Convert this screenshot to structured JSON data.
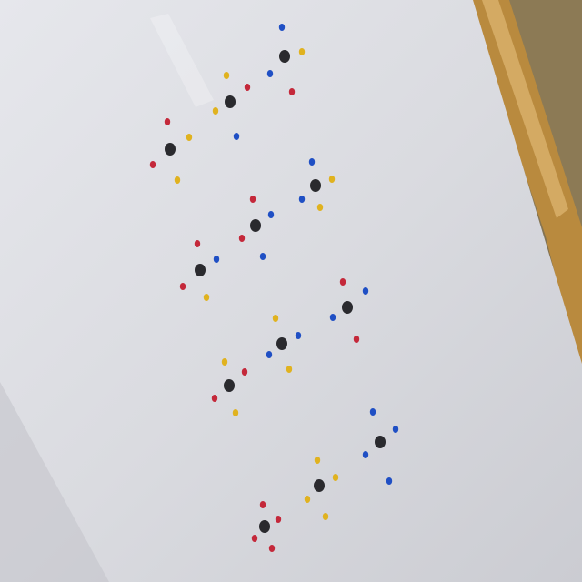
{
  "scene": {
    "subject": "white-sheet-with-painted-dots",
    "colors": {
      "paper": "#dcdde2",
      "paper_shadow": "#c8c9cf",
      "table": "#b98a3e",
      "table_dark": "#7a5a28",
      "background": "#6f6249",
      "black_dot": "#2a2a2e",
      "red_dot": "#c4283a",
      "blue_dot": "#1f4fc4",
      "yellow_dot": "#e0b21f"
    },
    "dot_groups_count": 12
  }
}
